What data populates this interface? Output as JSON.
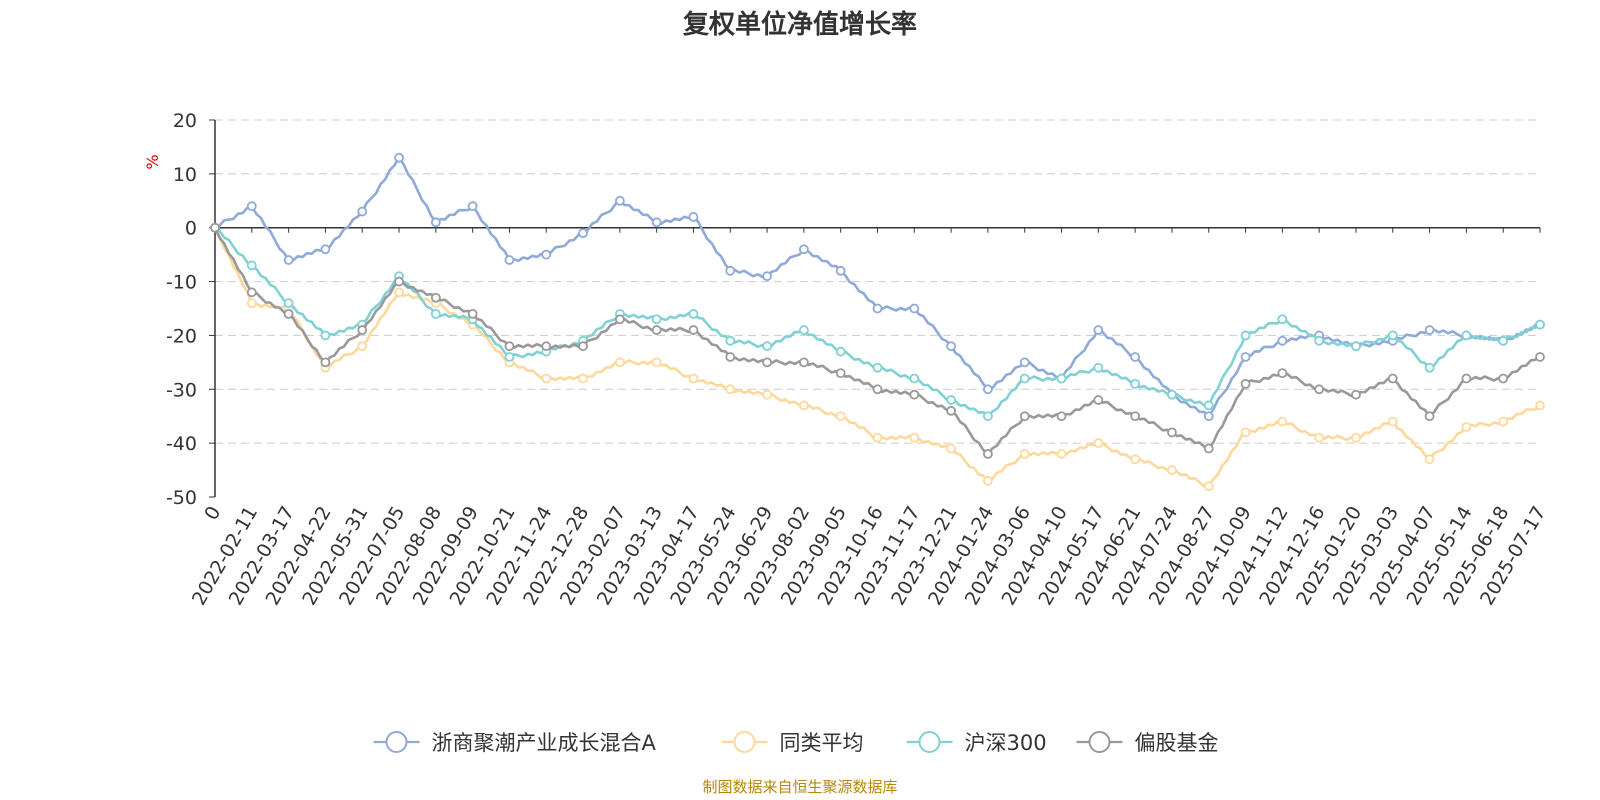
{
  "title": "复权单位净值增长率",
  "source": "制图数据来自恒生聚源数据库",
  "colors": {
    "source_text": "#b8860b",
    "unit_text": "#e00000"
  },
  "chart_data": {
    "type": "line",
    "title": "复权单位净值增长率",
    "ylabel": "%",
    "ylim": [
      -50,
      20
    ],
    "yticks": [
      20,
      10,
      0,
      -10,
      -20,
      -30,
      -40,
      -50
    ],
    "grid": true,
    "legend_position": "bottom-center",
    "x_tick_labels": [
      "0",
      "2022-02-11",
      "2022-03-17",
      "2022-04-22",
      "2022-05-31",
      "2022-07-05",
      "2022-08-08",
      "2022-09-09",
      "2022-10-21",
      "2022-11-24",
      "2022-12-28",
      "2023-02-07",
      "2023-03-13",
      "2023-04-17",
      "2023-05-24",
      "2023-06-29",
      "2023-08-02",
      "2023-09-05",
      "2023-10-16",
      "2023-11-17",
      "2023-12-21",
      "2024-01-24",
      "2024-03-06",
      "2024-04-10",
      "2024-05-17",
      "2024-06-21",
      "2024-07-24",
      "2024-08-27",
      "2024-10-09",
      "2024-11-12",
      "2024-12-16",
      "2025-01-20",
      "2025-03-03",
      "2025-04-07",
      "2025-05-14",
      "2025-06-18",
      "2025-07-17"
    ],
    "series": [
      {
        "name": "浙商聚潮产业成长混合A",
        "color": "#8fa9d9",
        "values": [
          0,
          4,
          -6,
          -4,
          3,
          13,
          1,
          4,
          -6,
          -5,
          -1,
          5,
          1,
          2,
          -8,
          -9,
          -4,
          -8,
          -15,
          -15,
          -22,
          -30,
          -25,
          -28,
          -19,
          -24,
          -31,
          -35,
          -24,
          -21,
          -20,
          -22,
          -21,
          -19,
          -20,
          -21,
          -18
        ]
      },
      {
        "name": "同类平均",
        "color": "#fdd89a",
        "values": [
          0,
          -14,
          -15,
          -26,
          -22,
          -12,
          -14,
          -18,
          -25,
          -28,
          -28,
          -25,
          -25,
          -28,
          -30,
          -31,
          -33,
          -35,
          -39,
          -39,
          -41,
          -47,
          -42,
          -42,
          -40,
          -43,
          -45,
          -48,
          -38,
          -36,
          -39,
          -39,
          -36,
          -43,
          -37,
          -36,
          -33
        ]
      },
      {
        "name": "沪深300",
        "color": "#7fd1d4",
        "values": [
          0,
          -7,
          -14,
          -20,
          -18,
          -9,
          -16,
          -17,
          -24,
          -23,
          -21,
          -16,
          -17,
          -16,
          -21,
          -22,
          -19,
          -23,
          -26,
          -28,
          -32,
          -35,
          -28,
          -28,
          -26,
          -29,
          -31,
          -33,
          -20,
          -17,
          -21,
          -22,
          -20,
          -26,
          -20,
          -21,
          -18
        ]
      },
      {
        "name": "偏股基金",
        "color": "#999999",
        "values": [
          0,
          -12,
          -16,
          -25,
          -19,
          -10,
          -13,
          -16,
          -22,
          -22,
          -22,
          -17,
          -19,
          -19,
          -24,
          -25,
          -25,
          -27,
          -30,
          -31,
          -34,
          -42,
          -35,
          -35,
          -32,
          -35,
          -38,
          -41,
          -29,
          -27,
          -30,
          -31,
          -28,
          -35,
          -28,
          -28,
          -24
        ]
      }
    ]
  }
}
